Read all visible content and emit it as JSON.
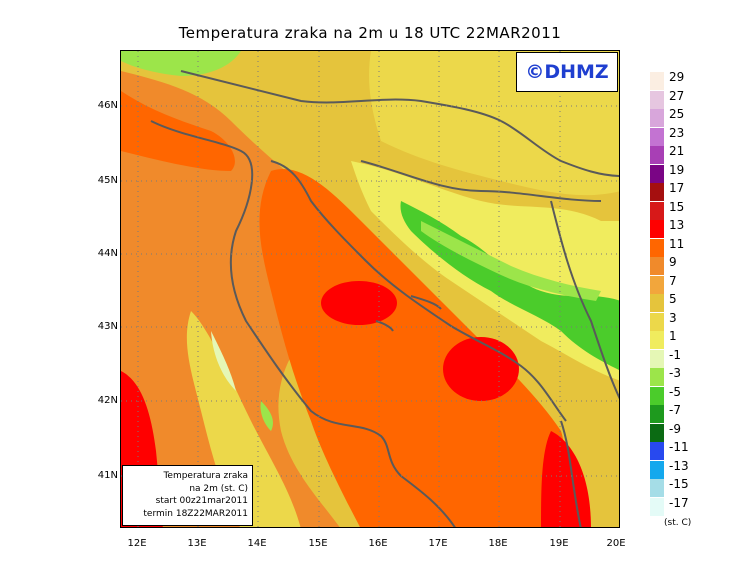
{
  "title": "Temperatura zraka na 2m u 18 UTC 22MAR2011",
  "logo": "©DHMZ",
  "info_box": {
    "line1": "Temperatura zraka",
    "line2": "na 2m (st. C)",
    "line3": "start 00z21mar2011",
    "line4": "termin 18Z22MAR2011"
  },
  "lat_labels": [
    "46N",
    "45N",
    "44N",
    "43N",
    "42N",
    "41N"
  ],
  "lon_labels": [
    "12E",
    "13E",
    "14E",
    "15E",
    "16E",
    "17E",
    "18E",
    "19E",
    "20E"
  ],
  "legend": {
    "ticks": [
      "29",
      "27",
      "25",
      "23",
      "21",
      "19",
      "17",
      "15",
      "13",
      "11",
      "9",
      "7",
      "5",
      "3",
      "1",
      "-1",
      "-3",
      "-5",
      "-7",
      "-9",
      "-11",
      "-13",
      "-15",
      "-17"
    ],
    "colors": [
      "#fbeee2",
      "#e6c6e0",
      "#d8a6db",
      "#c373d2",
      "#a83fb5",
      "#7a0585",
      "#a50f0f",
      "#d71919",
      "#ff0000",
      "#ff6600",
      "#f08a2b",
      "#f2a63c",
      "#e5c43c",
      "#ecd84a",
      "#f0ec5e",
      "#e5f7b5",
      "#9ce54a",
      "#4bcc2b",
      "#1e9a1e",
      "#0b6b13",
      "#2849ef",
      "#14a8ed",
      "#a5dde7",
      "#e4fbf7"
    ],
    "unit": "(st. C)"
  },
  "colors": {
    "sea": "#ff6600",
    "hot": "#ff0000",
    "warm_land": "#f08a2b",
    "mild_land": "#e5c43c",
    "cool_land": "#f0ec5e",
    "cold_land": "#4bcc2b",
    "border": "#5a5a5a",
    "logo_text": "#1f3fd0"
  }
}
